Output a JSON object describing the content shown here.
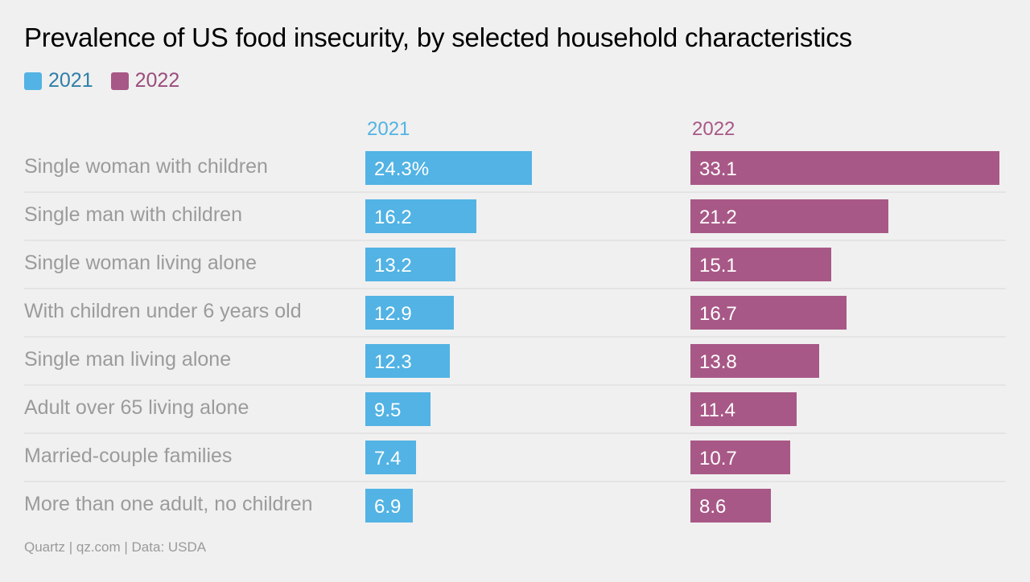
{
  "title": "Prevalence of US food insecurity, by selected household characteristics",
  "source": "Quartz | qz.com | Data: USDA",
  "colors": {
    "2021": "#52b3e4",
    "2022": "#a85886",
    "label": "#9b9b9b",
    "gridline": "#d9d9d9"
  },
  "legend": [
    {
      "label": "2021",
      "color": "#52b3e4",
      "text_color": "#2e7fa8"
    },
    {
      "label": "2022",
      "color": "#a85886",
      "text_color": "#9a4d7b"
    }
  ],
  "chart_data": {
    "type": "bar",
    "orientation": "horizontal",
    "layout": "small-multiples",
    "title": "Prevalence of US food insecurity, by selected household characteristics",
    "categories": [
      "Single woman with children",
      "Single man with children",
      "Single woman living alone",
      "With children under 6 years old",
      "Single man living alone",
      "Adult over 65 living alone",
      "Married-couple families",
      "More than one adult, no children"
    ],
    "series": [
      {
        "name": "2021",
        "values": [
          24.3,
          16.2,
          13.2,
          12.9,
          12.3,
          9.5,
          7.4,
          6.9
        ],
        "labels": [
          "24.3%",
          "16.2",
          "13.2",
          "12.9",
          "12.3",
          "9.5",
          "7.4",
          "6.9"
        ]
      },
      {
        "name": "2022",
        "values": [
          33.1,
          21.2,
          15.1,
          16.7,
          13.8,
          11.4,
          10.7,
          8.6
        ],
        "labels": [
          "33.1",
          "21.2",
          "15.1",
          "16.7",
          "13.8",
          "11.4",
          "10.7",
          "8.6"
        ]
      }
    ],
    "xlim": [
      0,
      33.1
    ],
    "grid": false,
    "legend_position": "top-left"
  }
}
